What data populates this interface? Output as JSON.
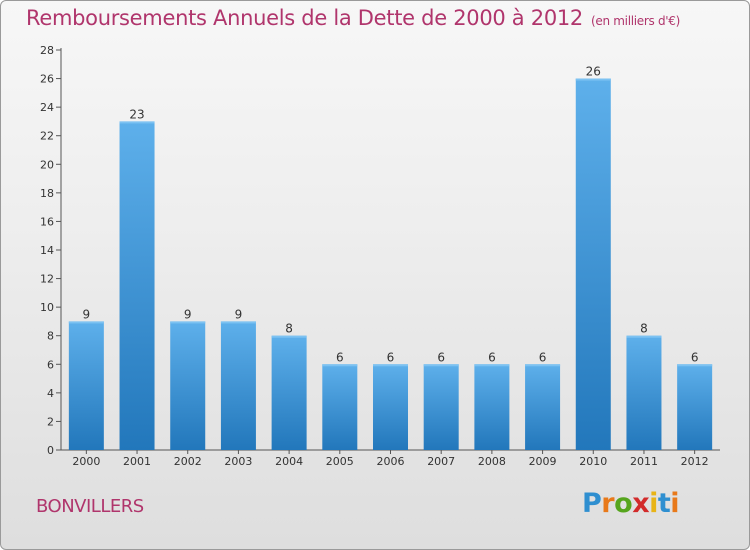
{
  "header": {
    "title": "Remboursements Annuels de la Dette de 2000 à 2012",
    "unit": "(en milliers d'€)"
  },
  "footer": {
    "commune": "BONVILLERS",
    "logo_letters": [
      "P",
      "r",
      "o",
      "x",
      "i",
      "t",
      "i"
    ],
    "logo_colors": [
      "#2f8fd0",
      "#e8791a",
      "#56a51d",
      "#d22b2b",
      "#e8b417",
      "#2f8fd0",
      "#e8791a"
    ]
  },
  "colors": {
    "bar_light": "#5eb0eb",
    "bar_dark": "#2277bb",
    "title": "#b0356c"
  },
  "chart_data": {
    "type": "bar",
    "title": "Remboursements Annuels de la Dette de 2000 à 2012",
    "xlabel": "",
    "ylabel": "",
    "categories": [
      "2000",
      "2001",
      "2002",
      "2003",
      "2004",
      "2005",
      "2006",
      "2007",
      "2008",
      "2009",
      "2010",
      "2011",
      "2012"
    ],
    "values": [
      9,
      23,
      9,
      9,
      8,
      6,
      6,
      6,
      6,
      6,
      26,
      8,
      6
    ],
    "ylim": [
      0,
      28
    ],
    "yticks": [
      0,
      2,
      4,
      6,
      8,
      10,
      12,
      14,
      16,
      18,
      20,
      22,
      24,
      26,
      28
    ],
    "grid": false,
    "data_labels": true
  }
}
